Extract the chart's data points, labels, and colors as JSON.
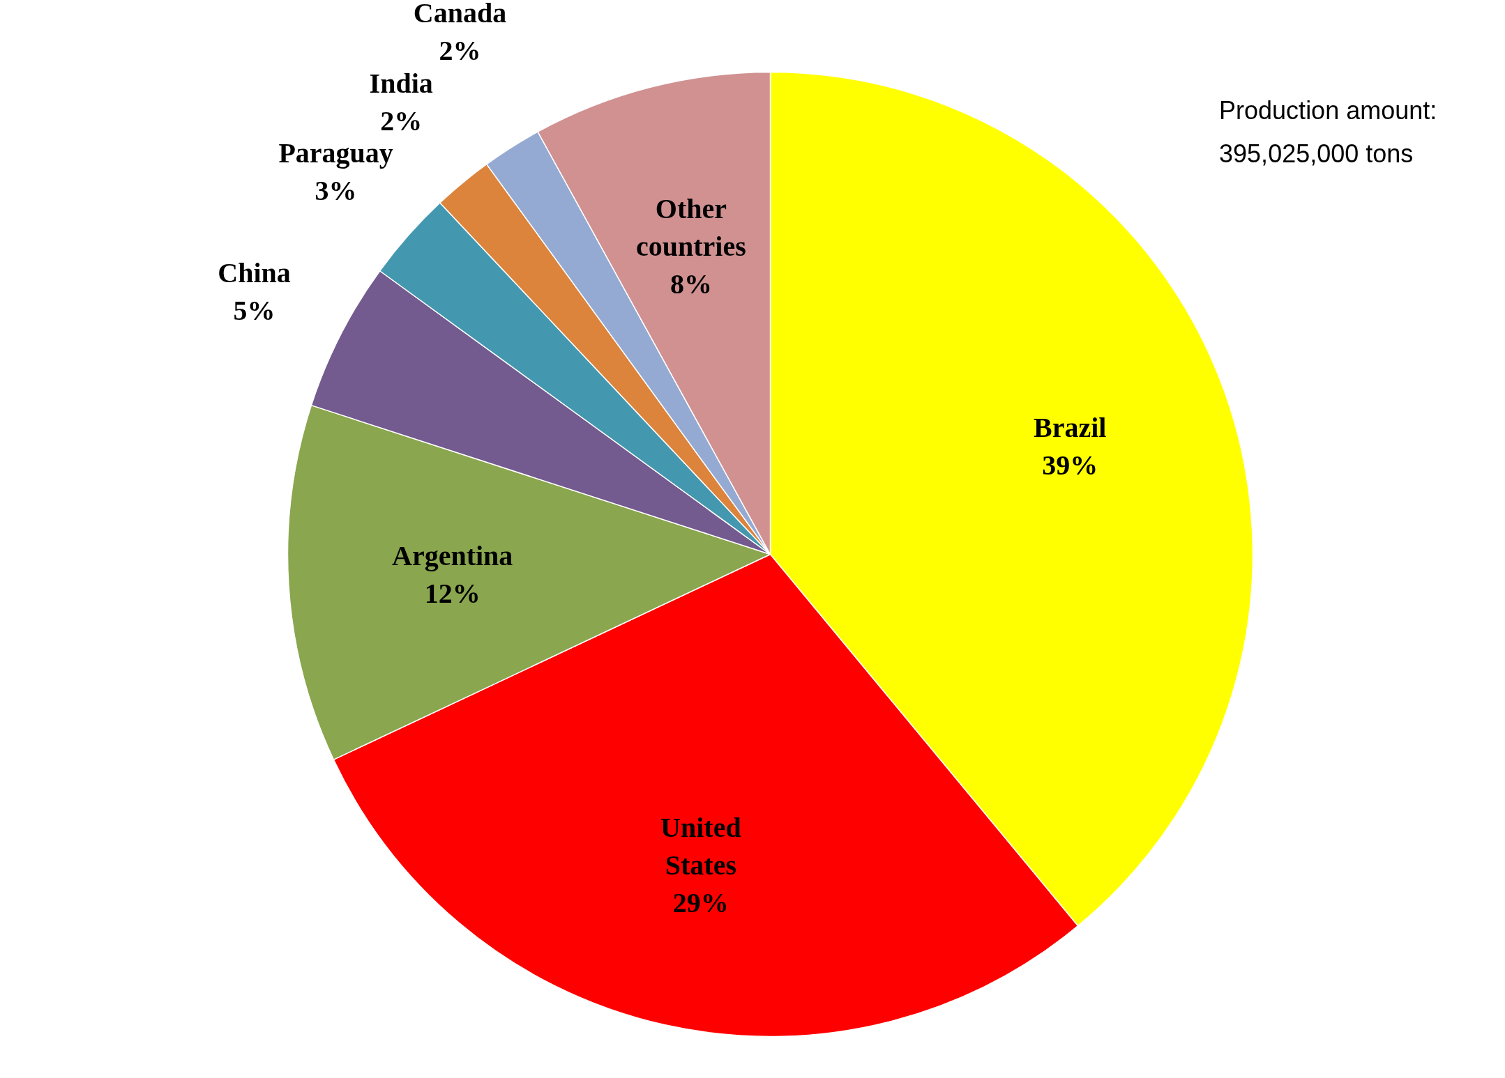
{
  "chart_data": {
    "type": "pie",
    "categories": [
      "Brazil",
      "United States",
      "Argentina",
      "China",
      "Paraguay",
      "India",
      "Canada",
      "Other countries"
    ],
    "values": [
      39,
      29,
      12,
      5,
      3,
      2,
      2,
      8
    ],
    "value_labels": [
      "39%",
      "29%",
      "12%",
      "5%",
      "3%",
      "2%",
      "2%",
      "8%"
    ],
    "colors": [
      "#ffff00",
      "#ff0000",
      "#8aa64e",
      "#735a8f",
      "#4398b0",
      "#dc843c",
      "#95aad3",
      "#d19191"
    ],
    "annotations": [
      "Production amount:\n395,025,000 tons"
    ]
  }
}
